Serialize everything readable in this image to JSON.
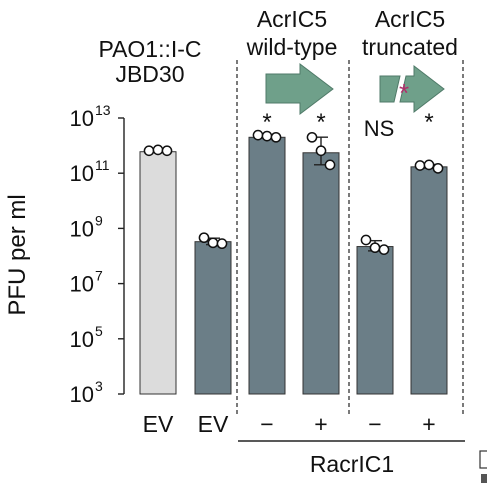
{
  "chart_data": {
    "type": "bar",
    "ylabel": "PFU per ml",
    "yscale": "log10",
    "ylim": [
      1000,
      10000000000000
    ],
    "yticks": [
      {
        "base": "10",
        "exp": "13",
        "value": 10000000000000
      },
      {
        "base": "10",
        "exp": "11",
        "value": 100000000000
      },
      {
        "base": "10",
        "exp": "9",
        "value": 1000000000
      },
      {
        "base": "10",
        "exp": "7",
        "value": 10000000
      },
      {
        "base": "10",
        "exp": "5",
        "value": 100000
      },
      {
        "base": "10",
        "exp": "3",
        "value": 1000
      }
    ],
    "categories": [
      "EV",
      "EV",
      "−",
      "+",
      "−",
      "+"
    ],
    "values": [
      600000000000,
      330000000,
      2000000000000,
      550000000000,
      220000000,
      170000000000
    ],
    "replicates": [
      [
        650000000000,
        700000000000,
        650000000000
      ],
      [
        460000000,
        300000000,
        280000000
      ],
      [
        2400000000000,
        2200000000000,
        2000000000000
      ],
      [
        2000000000000,
        650000000000,
        200000000000
      ],
      [
        380000000,
        200000000,
        170000000
      ],
      [
        190000000000,
        200000000000,
        150000000000
      ]
    ],
    "significance": [
      "",
      "",
      "*",
      "*",
      "NS",
      "*"
    ],
    "bar_colors": [
      "#dcdcdc",
      "#6b7e87",
      "#6b7e87",
      "#6b7e87",
      "#6b7e87",
      "#6b7e87"
    ],
    "group_label": "RacrIC1",
    "header": {
      "left_line1": "PAO1::I-C",
      "left_line2": "JBD30",
      "mid_line1": "AcrIC5",
      "mid_line2": "wild-type",
      "right_line1": "AcrIC5",
      "right_line2": "truncated",
      "truncation_mark": "*"
    },
    "colors": {
      "arrow": "#6fa08a",
      "accent_star": "#b0306b"
    }
  }
}
